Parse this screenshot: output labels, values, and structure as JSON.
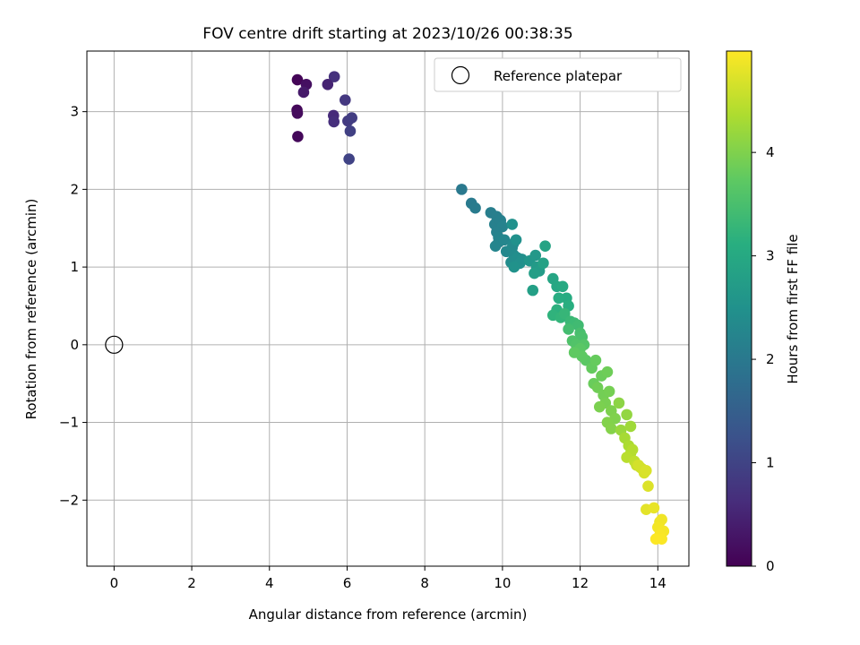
{
  "chart_data": {
    "type": "scatter",
    "title": "FOV centre drift starting at 2023/10/26 00:38:35",
    "xlabel": "Angular distance from reference (arcmin)",
    "ylabel": "Rotation from reference (arcmin)",
    "xlim": [
      -0.7,
      14.8
    ],
    "ylim": [
      -2.85,
      3.78
    ],
    "xticks": [
      0,
      2,
      4,
      6,
      8,
      10,
      12,
      14
    ],
    "yticks": [
      -2,
      -1,
      0,
      1,
      2,
      3
    ],
    "grid": true,
    "legend": {
      "placement": "top-right",
      "entries": [
        "Reference platepar"
      ]
    },
    "reference_point": {
      "x": 0,
      "y": 0,
      "label": "Reference platepar"
    },
    "colorbar": {
      "label": "Hours from first FF file",
      "range": [
        0,
        4.98
      ],
      "ticks": [
        0,
        1,
        2,
        3,
        4
      ],
      "colormap": "viridis"
    },
    "series": [
      {
        "x": [
          4.72,
          4.95,
          4.88,
          4.71,
          4.72,
          4.73,
          5.67,
          5.5,
          5.95,
          5.65,
          5.66,
          6.02,
          6.12,
          6.08,
          6.05,
          8.95,
          9.2,
          9.3,
          9.7,
          9.85,
          9.8,
          9.95,
          10.0,
          9.85,
          9.9,
          9.9,
          9.82,
          10.05,
          10.1,
          10.28,
          10.25,
          10.3,
          10.22,
          10.28,
          10.38,
          10.5,
          10.45,
          10.25,
          10.35,
          10.3,
          10.7,
          10.85,
          10.88,
          10.95,
          10.82,
          10.78,
          11.05,
          11.1,
          11.3,
          11.4,
          11.55,
          11.65,
          11.45,
          11.7,
          11.4,
          11.3,
          11.5,
          11.6,
          11.75,
          11.85,
          11.95,
          11.7,
          12.0,
          12.05,
          11.8,
          11.9,
          12.1,
          11.95,
          12.0,
          12.15,
          12.05,
          11.85,
          12.3,
          12.4,
          12.35,
          12.55,
          12.7,
          12.45,
          12.6,
          12.75,
          12.65,
          12.5,
          12.8,
          12.9,
          12.7,
          12.8,
          13.0,
          13.2,
          13.05,
          13.3,
          13.15,
          13.25,
          13.3,
          13.35,
          13.2,
          13.4,
          13.45,
          13.55,
          13.6,
          13.5,
          13.65,
          13.7,
          13.75,
          13.7,
          13.9,
          14.05,
          14.1,
          14.0,
          14.15,
          14.05,
          14.1,
          13.95
        ],
        "y": [
          3.41,
          3.35,
          3.25,
          3.02,
          2.98,
          2.68,
          3.45,
          3.35,
          3.15,
          2.95,
          2.87,
          2.88,
          2.92,
          2.75,
          2.39,
          2.0,
          1.82,
          1.76,
          1.7,
          1.65,
          1.55,
          1.6,
          1.52,
          1.45,
          1.38,
          1.32,
          1.27,
          1.35,
          1.2,
          1.3,
          1.25,
          1.15,
          1.06,
          1.08,
          1.12,
          1.1,
          1.05,
          1.55,
          1.35,
          1.0,
          1.08,
          1.15,
          1.0,
          0.95,
          0.92,
          0.7,
          1.05,
          1.27,
          0.85,
          0.75,
          0.75,
          0.6,
          0.6,
          0.5,
          0.45,
          0.38,
          0.35,
          0.4,
          0.3,
          0.28,
          0.25,
          0.2,
          0.15,
          0.1,
          0.05,
          0.0,
          0.0,
          -0.1,
          -0.05,
          -0.2,
          -0.15,
          -0.1,
          -0.3,
          -0.2,
          -0.5,
          -0.4,
          -0.35,
          -0.55,
          -0.65,
          -0.6,
          -0.75,
          -0.8,
          -0.85,
          -0.95,
          -1.0,
          -1.08,
          -0.75,
          -0.9,
          -1.1,
          -1.05,
          -1.2,
          -1.3,
          -1.4,
          -1.35,
          -1.45,
          -1.5,
          -1.55,
          -1.58,
          -1.6,
          -1.55,
          -1.65,
          -1.62,
          -1.82,
          -2.12,
          -2.1,
          -2.28,
          -2.25,
          -2.35,
          -2.4,
          -2.45,
          -2.5,
          -2.5
        ],
        "hours": [
          0.05,
          0.2,
          0.35,
          0.1,
          0.15,
          0.1,
          0.7,
          0.5,
          0.8,
          0.6,
          0.65,
          0.85,
          0.9,
          0.95,
          1.0,
          2.0,
          2.02,
          2.05,
          2.1,
          2.12,
          2.15,
          2.14,
          2.18,
          2.16,
          2.2,
          2.22,
          2.24,
          2.26,
          2.3,
          2.32,
          2.34,
          2.36,
          2.38,
          2.4,
          2.42,
          2.44,
          2.46,
          2.48,
          2.5,
          2.52,
          2.6,
          2.64,
          2.68,
          2.72,
          2.76,
          2.8,
          2.84,
          2.88,
          2.92,
          2.96,
          3.0,
          3.04,
          3.08,
          3.12,
          3.16,
          3.2,
          3.24,
          3.28,
          3.32,
          3.36,
          3.4,
          3.44,
          3.48,
          3.52,
          3.56,
          3.6,
          3.62,
          3.66,
          3.68,
          3.7,
          3.72,
          3.74,
          3.78,
          3.8,
          3.82,
          3.84,
          3.86,
          3.88,
          3.9,
          3.92,
          3.94,
          3.96,
          3.98,
          4.0,
          4.02,
          4.04,
          4.1,
          4.15,
          4.2,
          4.25,
          4.3,
          4.35,
          4.4,
          4.42,
          4.45,
          4.5,
          4.55,
          4.6,
          4.62,
          4.65,
          4.68,
          4.7,
          4.72,
          4.78,
          4.82,
          4.85,
          4.88,
          4.9,
          4.92,
          4.94,
          4.96,
          4.97
        ]
      }
    ]
  }
}
